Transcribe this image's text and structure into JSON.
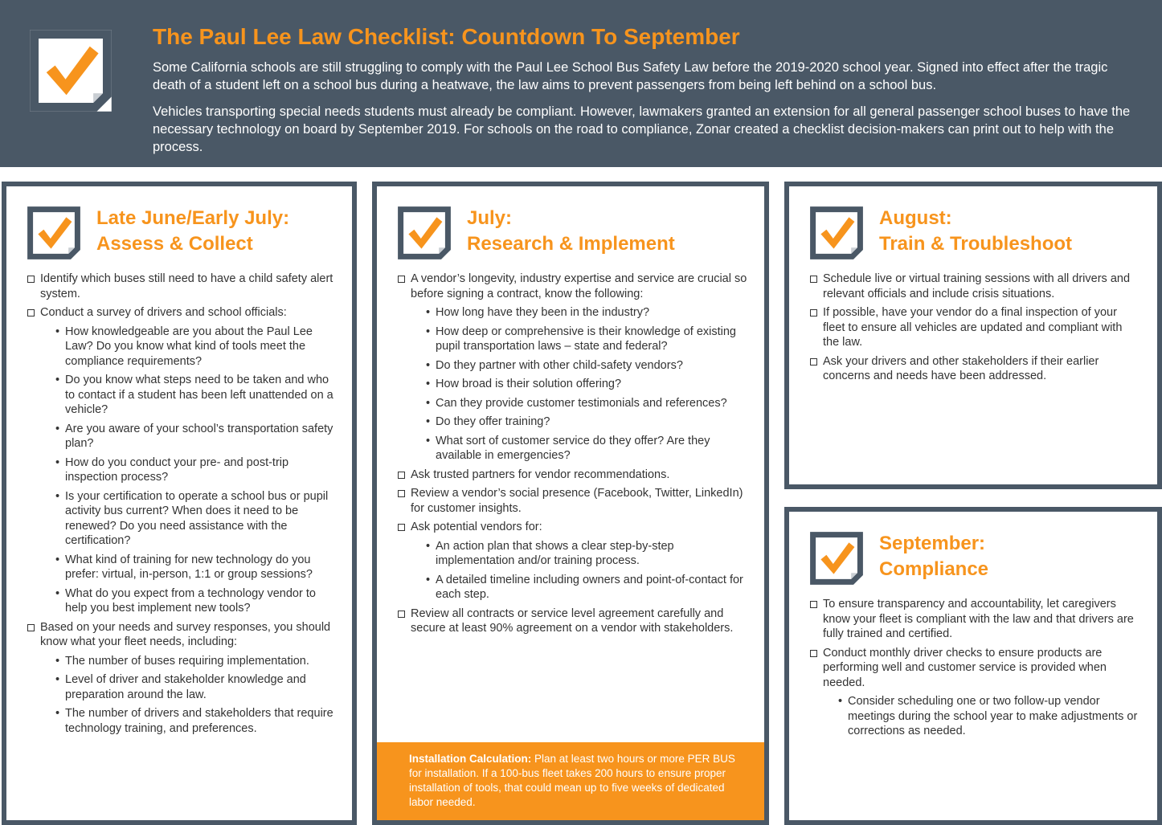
{
  "header": {
    "title": "The Paul Lee Law Checklist: Countdown To September",
    "paragraphs": [
      "Some California schools are still struggling to comply with the Paul Lee School Bus Safety Law before the 2019-2020 school year. Signed into effect after the tragic death of a student left on a school bus during a heatwave, the law aims to prevent passengers from being left behind on a school bus.",
      "Vehicles transporting special needs students must already be compliant. However, lawmakers granted an extension for all general passenger school buses to have the necessary technology on board by September 2019.  For schools on the road to compliance, Zonar created a checklist decision-makers can print out to help with the process."
    ]
  },
  "panels": [
    {
      "title": [
        "Late June/Early July:",
        "Assess & Collect"
      ],
      "items": [
        {
          "text": "Identify which buses still need to have a child safety alert system."
        },
        {
          "text": "Conduct a survey of drivers and school officials:",
          "sub": [
            "How knowledgeable are you about the Paul Lee Law? Do you know what kind of tools meet the compliance requirements?",
            "Do you know what steps need to be taken and who to contact if a student has been left unattended on a vehicle?",
            "Are you aware of your school’s transportation safety plan?",
            "How do you conduct your pre- and post-trip inspection process?",
            "Is your certification to operate a school bus or pupil activity bus current? When does it need to be renewed?  Do you need assistance with the certification?",
            "What kind of training for new technology do you prefer: virtual, in-person, 1:1 or group sessions?",
            "What do you expect from a technology vendor to help you best implement new tools?"
          ]
        },
        {
          "text": "Based on your needs and survey responses, you should know what your fleet needs, including:",
          "sub": [
            "The number of buses requiring implementation.",
            "Level of driver and stakeholder knowledge and preparation around the law.",
            "The number of drivers and stakeholders that require technology training, and preferences."
          ]
        }
      ]
    },
    {
      "title": [
        "July:",
        "Research & Implement"
      ],
      "items": [
        {
          "text": "A vendor’s longevity, industry expertise and service are crucial so before signing a contract, know the following:",
          "sub": [
            "How long have they been in the industry?",
            "How deep or comprehensive is their knowledge of existing pupil transportation laws – state and federal?",
            "Do they partner with other child-safety vendors?",
            "How broad is their solution offering?",
            "Can they provide customer testimonials and references?",
            "Do they offer training?",
            "What sort of customer service do they offer? Are they available in emergencies?"
          ]
        },
        {
          "text": "Ask trusted partners for vendor recommendations."
        },
        {
          "text": "Review a vendor’s social presence (Facebook, Twitter, LinkedIn) for customer insights."
        },
        {
          "text": "Ask potential vendors for:",
          "sub": [
            "An action plan that shows a clear step-by-step implementation and/or training process.",
            "A detailed timeline including owners and point-of-contact for each step."
          ]
        },
        {
          "text": "Review all contracts or service level agreement carefully and secure at least 90% agreement on a vendor with stakeholders."
        }
      ],
      "callout": {
        "label": "Installation Calculation:",
        "text": "Plan at least two hours or more PER BUS for installation. If a 100-bus fleet takes 200 hours to ensure proper installation of tools, that could mean up to five weeks of dedicated labor needed."
      }
    },
    {
      "title": [
        "August:",
        "Train & Troubleshoot"
      ],
      "items": [
        {
          "text": "Schedule live or virtual training sessions with all drivers and relevant officials and include crisis situations."
        },
        {
          "text": "If possible, have your vendor do a final inspection of your fleet to ensure all vehicles are updated and compliant with the law."
        },
        {
          "text": "Ask your drivers and other stakeholders if their earlier concerns and needs have been addressed."
        }
      ]
    },
    {
      "title": [
        "September:",
        "Compliance"
      ],
      "items": [
        {
          "text": "To ensure transparency and accountability, let caregivers know your fleet is compliant with the law and that drivers are fully trained and certified."
        },
        {
          "text": "Conduct monthly driver checks to ensure products are performing well and customer service is provided when needed.",
          "sub": [
            "Consider scheduling one or two follow-up vendor meetings during the school year to make adjustments or corrections as needed."
          ]
        }
      ]
    }
  ]
}
